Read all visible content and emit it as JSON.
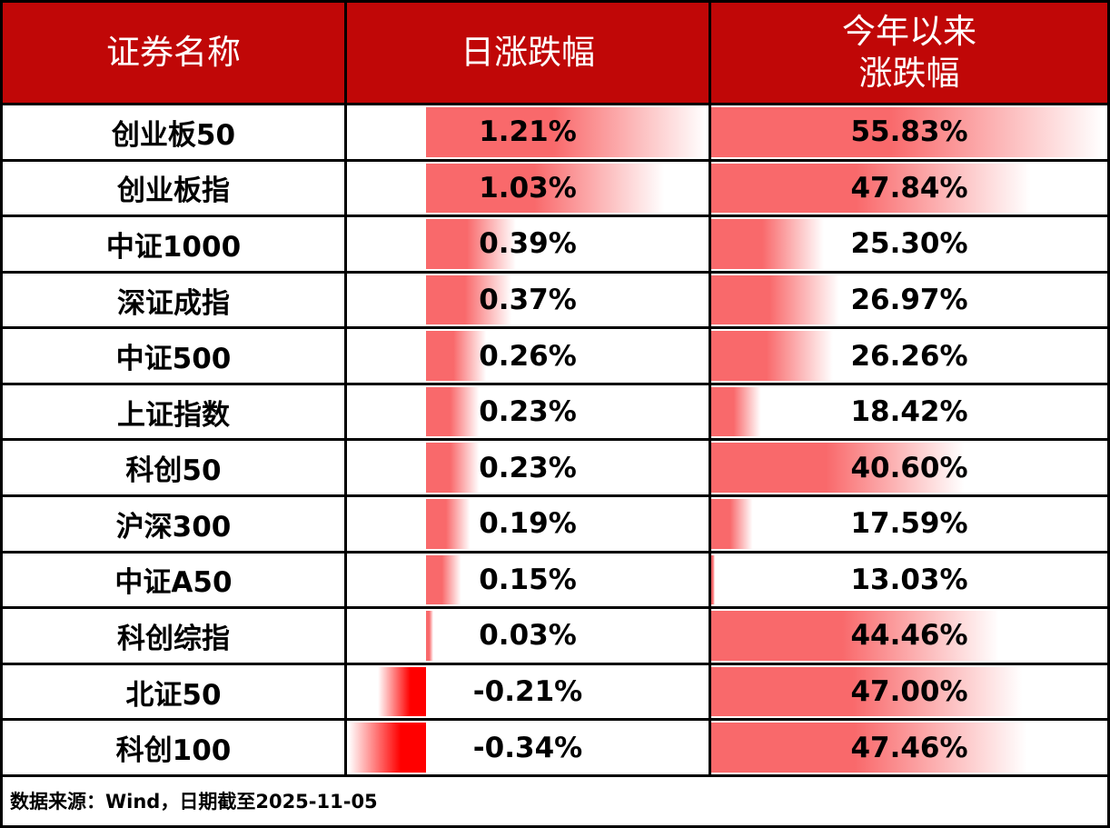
{
  "table": {
    "header": {
      "name_col": "证券名称",
      "daily_col": "日涨跌幅",
      "ytd_col": "今年以来\n涨跌幅"
    },
    "rows": [
      {
        "name": "创业板50",
        "daily_label": "1.21%",
        "daily_value": 1.21,
        "ytd_label": "55.83%",
        "ytd_value": 55.83
      },
      {
        "name": "创业板指",
        "daily_label": "1.03%",
        "daily_value": 1.03,
        "ytd_label": "47.84%",
        "ytd_value": 47.84
      },
      {
        "name": "中证1000",
        "daily_label": "0.39%",
        "daily_value": 0.39,
        "ytd_label": "25.30%",
        "ytd_value": 25.3
      },
      {
        "name": "深证成指",
        "daily_label": "0.37%",
        "daily_value": 0.37,
        "ytd_label": "26.97%",
        "ytd_value": 26.97
      },
      {
        "name": "中证500",
        "daily_label": "0.26%",
        "daily_value": 0.26,
        "ytd_label": "26.26%",
        "ytd_value": 26.26
      },
      {
        "name": "上证指数",
        "daily_label": "0.23%",
        "daily_value": 0.23,
        "ytd_label": "18.42%",
        "ytd_value": 18.42
      },
      {
        "name": "科创50",
        "daily_label": "0.23%",
        "daily_value": 0.23,
        "ytd_label": "40.60%",
        "ytd_value": 40.6
      },
      {
        "name": "沪深300",
        "daily_label": "0.19%",
        "daily_value": 0.19,
        "ytd_label": "17.59%",
        "ytd_value": 17.59
      },
      {
        "name": "中证A50",
        "daily_label": "0.15%",
        "daily_value": 0.15,
        "ytd_label": "13.03%",
        "ytd_value": 13.03
      },
      {
        "name": "科创综指",
        "daily_label": "0.03%",
        "daily_value": 0.03,
        "ytd_label": "44.46%",
        "ytd_value": 44.46
      },
      {
        "name": "北证50",
        "daily_label": "-0.21%",
        "daily_value": -0.21,
        "ytd_label": "47.00%",
        "ytd_value": 47.0
      },
      {
        "name": "科创100",
        "daily_label": "-0.34%",
        "daily_value": -0.34,
        "ytd_label": "47.46%",
        "ytd_value": 47.46
      }
    ],
    "footer": "数据来源：Wind，日期截至2025-11-05"
  },
  "chart_data": {
    "type": "table",
    "title": "",
    "columns": [
      "证券名称",
      "日涨跌幅",
      "今年以来涨跌幅"
    ],
    "rows": [
      [
        "创业板50",
        1.21,
        55.83
      ],
      [
        "创业板指",
        1.03,
        47.84
      ],
      [
        "中证1000",
        0.39,
        25.3
      ],
      [
        "深证成指",
        0.37,
        26.97
      ],
      [
        "中证500",
        0.26,
        26.26
      ],
      [
        "上证指数",
        0.23,
        18.42
      ],
      [
        "科创50",
        0.23,
        40.6
      ],
      [
        "沪深300",
        0.19,
        17.59
      ],
      [
        "中证A50",
        0.15,
        13.03
      ],
      [
        "科创综指",
        0.03,
        44.46
      ],
      [
        "北证50",
        -0.21,
        47.0
      ],
      [
        "科创100",
        -0.34,
        47.46
      ]
    ],
    "databar_axes": {
      "daily": {
        "min": -0.34,
        "max": 1.21
      },
      "ytd": {
        "min": 13.03,
        "max": 55.83
      }
    },
    "source_note": "数据来源：Wind，日期截至2025-11-05"
  },
  "colors": {
    "header_bg": "#c00707",
    "header_text": "#ffffff",
    "bar_positive": "#f9696b",
    "bar_negative": "#ff0000",
    "border": "#000000",
    "cell_bg": "#ffffff",
    "data_text": "#000000"
  }
}
